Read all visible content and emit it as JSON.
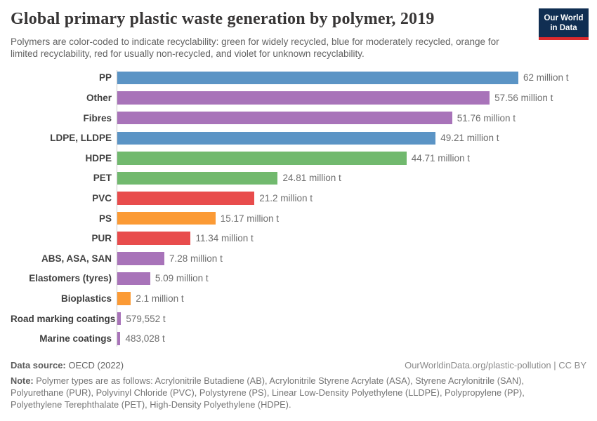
{
  "header": {
    "title": "Global primary plastic waste generation by polymer, 2019",
    "subtitle": "Polymers are color-coded to indicate recyclability: green for widely recycled, blue for moderately recycled, orange for limited recyclability, red for usually non-recycled, and violet for unknown recyclability.",
    "logo": {
      "line1": "Our World",
      "line2": "in Data",
      "bg_color": "#102e52",
      "accent_color": "#dc2a2d"
    }
  },
  "chart_data": {
    "type": "bar",
    "orientation": "horizontal",
    "title": "Global primary plastic waste generation by polymer, 2019",
    "unit": "million t",
    "xlim": [
      0,
      62
    ],
    "grid": "off",
    "categories": [
      "PP",
      "Other",
      "Fibres",
      "LDPE, LLDPE",
      "HDPE",
      "PET",
      "PVC",
      "PS",
      "PUR",
      "ABS, ASA, SAN",
      "Elastomers (tyres)",
      "Bioplastics",
      "Road marking coatings",
      "Marine coatings"
    ],
    "values": [
      62,
      57.56,
      51.76,
      49.21,
      44.71,
      24.81,
      21.2,
      15.17,
      11.34,
      7.28,
      5.09,
      2.1,
      0.579552,
      0.483028
    ],
    "value_labels": [
      "62 million t",
      "57.56 million t",
      "51.76 million t",
      "49.21 million t",
      "44.71 million t",
      "24.81 million t",
      "21.2 million t",
      "15.17 million t",
      "11.34 million t",
      "7.28 million t",
      "5.09 million t",
      "2.1 million t",
      "579,552 t",
      "483,028 t"
    ],
    "color_keys": [
      "blue",
      "violet",
      "violet",
      "blue",
      "green",
      "green",
      "red",
      "orange",
      "red",
      "violet",
      "violet",
      "orange",
      "violet",
      "violet"
    ],
    "palette": {
      "blue": "#5b94c5",
      "violet": "#a873b9",
      "green": "#71b96e",
      "red": "#e84c4c",
      "orange": "#fb9a35"
    },
    "recyclability_legend": {
      "green": "widely recycled",
      "blue": "moderately recycled",
      "orange": "limited recyclability",
      "red": "usually non-recycled",
      "violet": "unknown recyclability"
    }
  },
  "footer": {
    "datasource_label": "Data source:",
    "datasource_value": " OECD (2022)",
    "link": "OurWorldinData.org/plastic-pollution | CC BY",
    "note_label": "Note:",
    "note_text": " Polymer types are as follows: Acrylonitrile Butadiene (AB), Acrylonitrile Styrene Acrylate (ASA), Styrene Acrylonitrile (SAN), Polyurethane (PUR), Polyvinyl Chloride (PVC), Polystyrene (PS), Linear Low-Density Polyethylene (LLDPE), Polypropylene (PP), Polyethylene Terephthalate (PET), High-Density Polyethylene (HDPE)."
  }
}
